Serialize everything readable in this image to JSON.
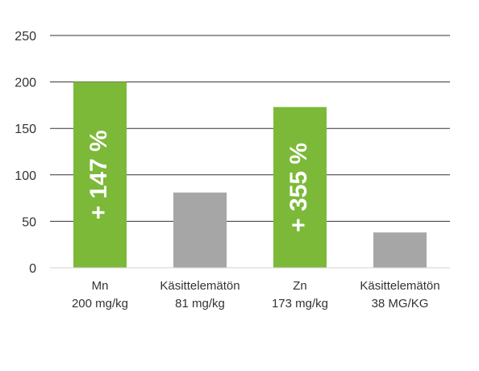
{
  "chart_data": {
    "type": "bar",
    "categories": [
      {
        "line1": "Mn",
        "line2": "200 mg/kg"
      },
      {
        "line1": "Käsittelemätön",
        "line2": "81 mg/kg"
      },
      {
        "line1": "Zn",
        "line2": "173 mg/kg"
      },
      {
        "line1": "Käsittelemätön",
        "line2": "38 MG/KG"
      }
    ],
    "values": [
      200,
      81,
      173,
      38
    ],
    "bar_colors": [
      "#7cb939",
      "#a6a6a6",
      "#7cb939",
      "#a6a6a6"
    ],
    "annotations": [
      "+ 147 %",
      "",
      "+ 355 %",
      ""
    ],
    "y_ticks": [
      0,
      50,
      100,
      150,
      200,
      250
    ],
    "ylim": [
      0,
      250
    ],
    "grid": true,
    "legend": "none"
  }
}
